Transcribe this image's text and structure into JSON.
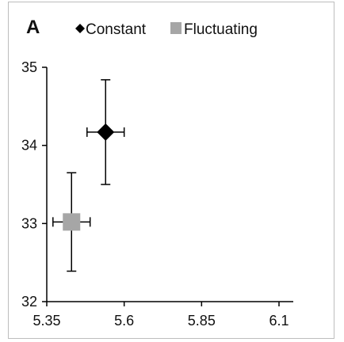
{
  "chart_data": {
    "type": "scatter",
    "panel_label": "A",
    "title": "",
    "xlabel": "",
    "ylabel": "",
    "xlim": [
      5.35,
      6.1
    ],
    "ylim": [
      32,
      35
    ],
    "xticks": [
      "5.35",
      "5.6",
      "5.85",
      "6.1"
    ],
    "yticks": [
      "32",
      "33",
      "34",
      "35"
    ],
    "legend_position": "top",
    "series": [
      {
        "name": "Constant",
        "marker": "diamond",
        "color": "#000000",
        "x": 5.54,
        "y": 34.17,
        "x_err": 0.06,
        "y_err": 0.67
      },
      {
        "name": "Fluctuating",
        "marker": "square",
        "color": "#a6a6a6",
        "x": 5.43,
        "y": 33.02,
        "x_err": 0.06,
        "y_err": 0.63
      }
    ]
  }
}
